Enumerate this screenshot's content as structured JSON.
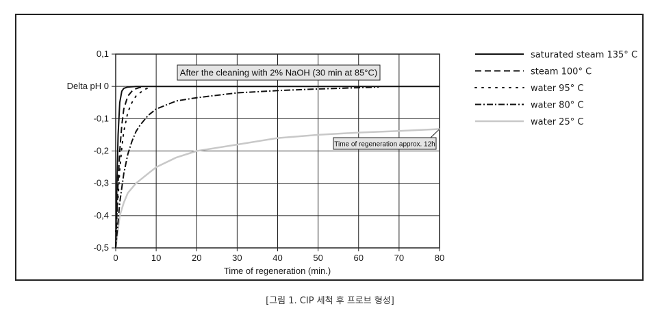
{
  "chart_data": {
    "type": "line",
    "xlabel": "Time of regeneration (min.)",
    "xlim": [
      0,
      80
    ],
    "ylim": [
      -0.5,
      0.1
    ],
    "x_ticks": [
      0,
      10,
      20,
      30,
      40,
      50,
      60,
      70,
      80
    ],
    "x_tick_labels": [
      "0",
      "10",
      "20",
      "30",
      "40",
      "50",
      "60",
      "70",
      "80"
    ],
    "y_ticks": [
      0.1,
      0,
      -0.1,
      -0.2,
      -0.3,
      -0.4,
      -0.5
    ],
    "y_tick_labels": [
      "0,1",
      "Delta pH 0",
      "-0,1",
      "-0,2",
      "-0,3",
      "-0,4",
      "-0,5"
    ],
    "grid": true,
    "legend_position": "right",
    "series": [
      {
        "name": "saturated steam 135° C",
        "color": "#111111",
        "dash": "solid",
        "x": [
          0,
          0.3,
          0.6,
          1,
          1.5,
          2,
          3,
          5,
          10,
          20,
          40,
          60,
          80
        ],
        "y": [
          -0.5,
          -0.3,
          -0.15,
          -0.05,
          -0.015,
          -0.006,
          -0.002,
          0,
          0,
          0,
          0,
          0,
          0
        ]
      },
      {
        "name": "steam 100° C",
        "color": "#111111",
        "dash": "longdash",
        "x": [
          0,
          0.5,
          1,
          1.5,
          2,
          3,
          4,
          5,
          6,
          7
        ],
        "y": [
          -0.5,
          -0.32,
          -0.2,
          -0.12,
          -0.07,
          -0.03,
          -0.015,
          -0.007,
          -0.003,
          0
        ]
      },
      {
        "name": "water 95° C",
        "color": "#111111",
        "dash": "dotted",
        "x": [
          0,
          0.5,
          1,
          1.5,
          2,
          3,
          4,
          5,
          6,
          7,
          8
        ],
        "y": [
          -0.45,
          -0.36,
          -0.26,
          -0.19,
          -0.14,
          -0.08,
          -0.05,
          -0.03,
          -0.02,
          -0.01,
          -0.005
        ]
      },
      {
        "name": "water 80° C",
        "color": "#111111",
        "dash": "dashdot",
        "x": [
          0,
          1,
          2,
          3,
          4,
          5,
          6,
          8,
          10,
          15,
          20,
          30,
          40,
          50,
          60,
          65
        ],
        "y": [
          -0.5,
          -0.36,
          -0.27,
          -0.21,
          -0.17,
          -0.14,
          -0.12,
          -0.09,
          -0.07,
          -0.045,
          -0.035,
          -0.02,
          -0.013,
          -0.008,
          -0.004,
          -0.002
        ]
      },
      {
        "name": "water 25° C",
        "color": "#c8c8c8",
        "dash": "solid",
        "x": [
          0,
          1,
          2,
          3,
          5,
          7,
          10,
          15,
          20,
          25,
          30,
          40,
          50,
          60,
          70,
          80
        ],
        "y": [
          -0.5,
          -0.4,
          -0.36,
          -0.33,
          -0.3,
          -0.28,
          -0.25,
          -0.22,
          -0.2,
          -0.19,
          -0.18,
          -0.16,
          -0.15,
          -0.143,
          -0.138,
          -0.132
        ]
      }
    ],
    "annotations": [
      {
        "text": "After the cleaning with 2% NaOH (30 min at 85°C)",
        "x": 30,
        "y": 0.05
      },
      {
        "text": "Time of regeneration approx. 12h",
        "x": 67,
        "y": -0.18,
        "arrow_to": {
          "x": 80,
          "y": -0.132
        }
      }
    ]
  },
  "caption": "[그림 1. CIP 세척 후 프로브 형성]"
}
